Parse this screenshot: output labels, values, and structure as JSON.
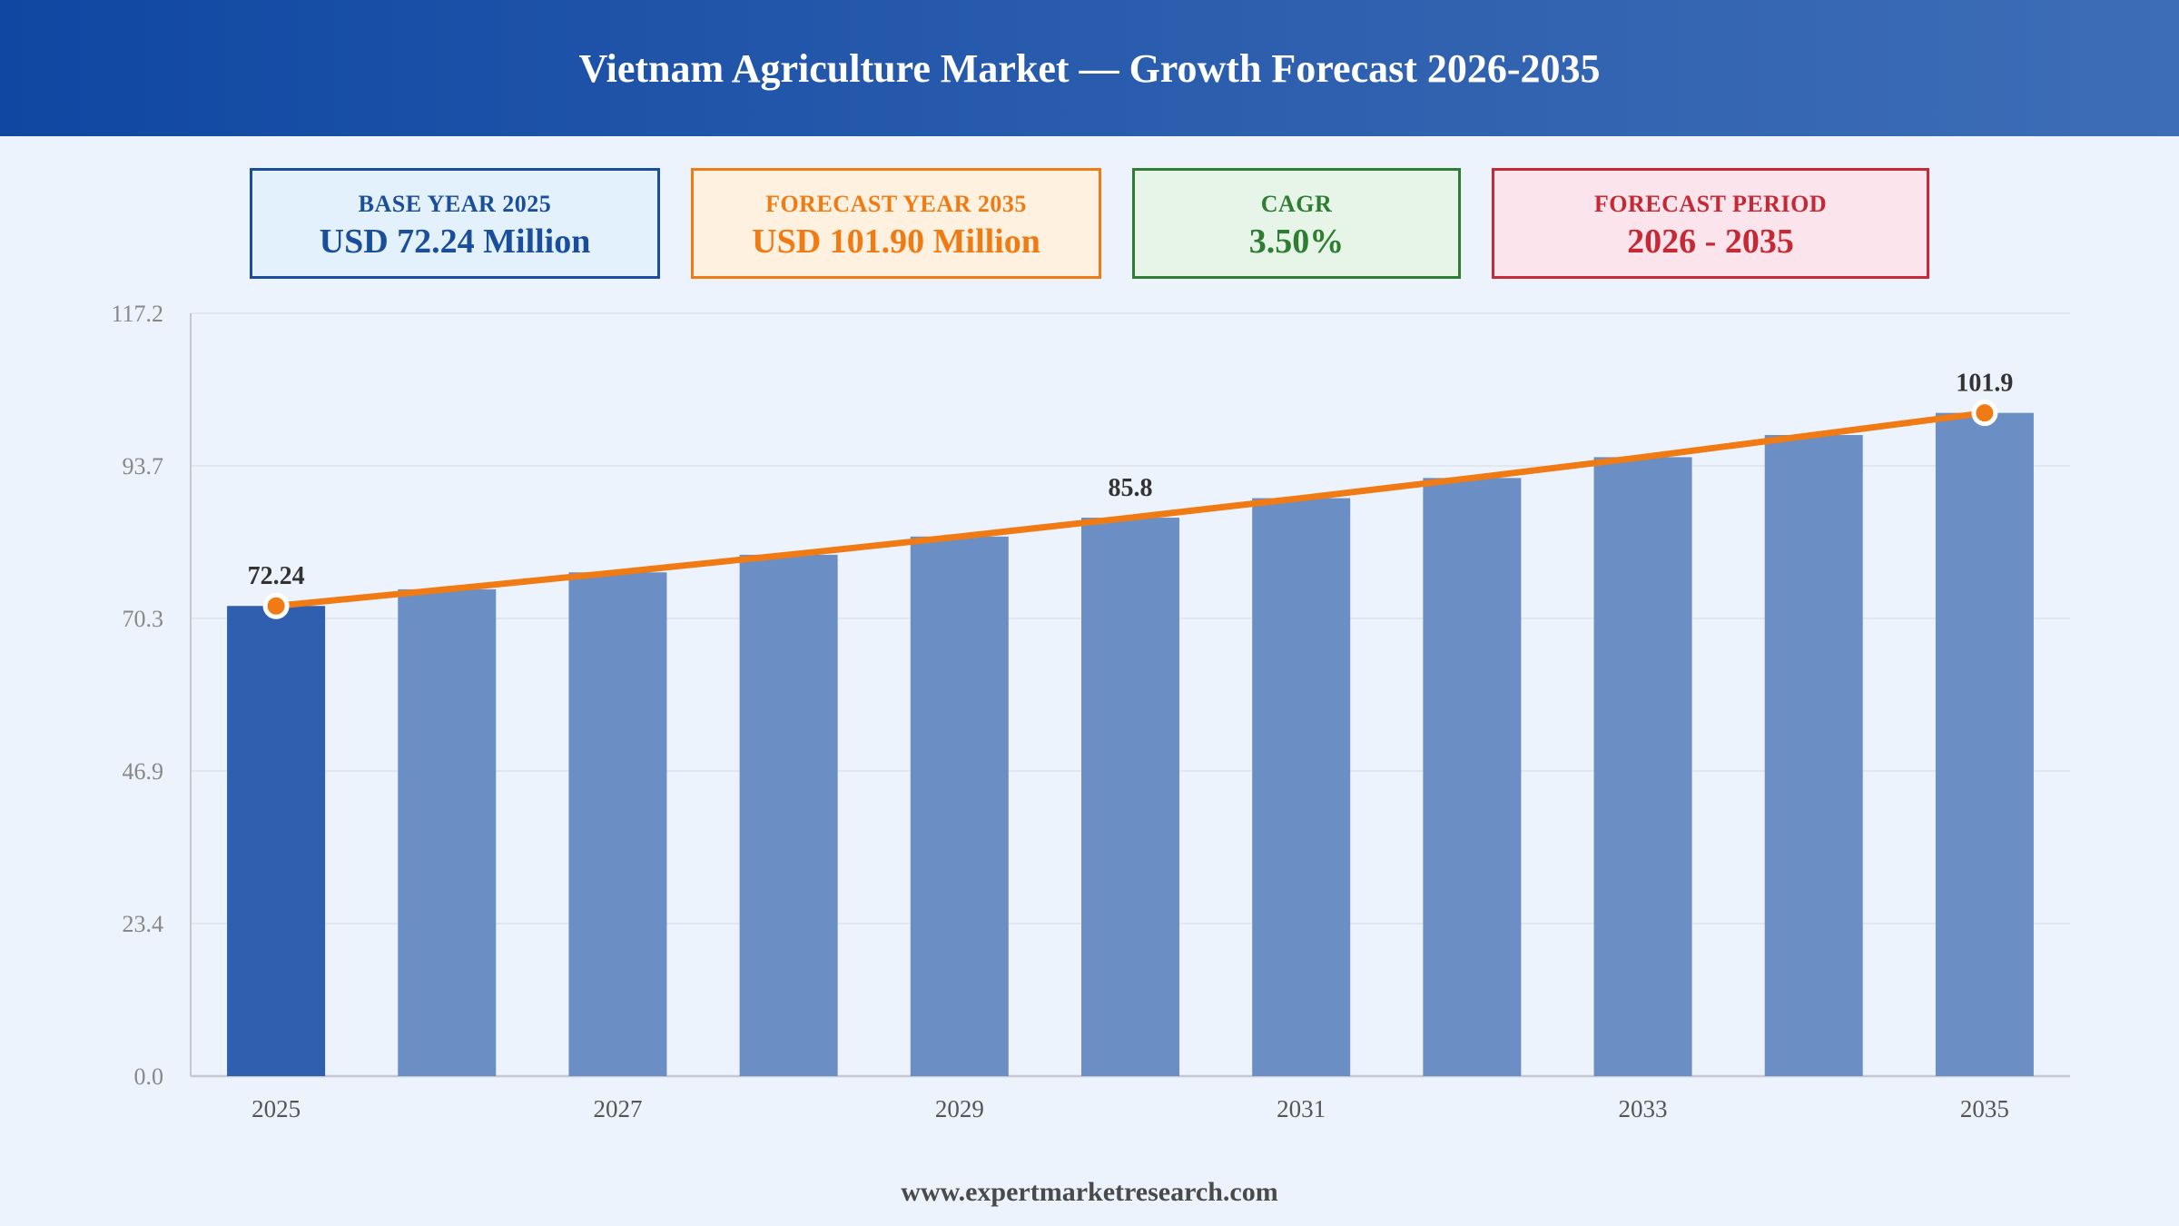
{
  "header": {
    "title": "Vietnam Agriculture Market — Growth Forecast 2026-2035"
  },
  "kpis": [
    {
      "label": "BASE YEAR 2025",
      "value": "USD 72.24 Million",
      "color": "#1a4e9c",
      "bg": "#e3f1fd"
    },
    {
      "label": "FORECAST YEAR 2035",
      "value": "USD 101.90 Million",
      "color": "#f07b14",
      "bg": "#fff1e0"
    },
    {
      "label": "CAGR",
      "value": "3.50%",
      "color": "#2f7d32",
      "bg": "#e6f5e8"
    },
    {
      "label": "FORECAST PERIOD",
      "value": "2026 - 2035",
      "color": "#c62834",
      "bg": "#fce4ec"
    }
  ],
  "chart_data": {
    "type": "bar",
    "categories": [
      "2025",
      "2026",
      "2027",
      "2028",
      "2029",
      "2030",
      "2031",
      "2032",
      "2033",
      "2034",
      "2035"
    ],
    "values": [
      72.24,
      74.8,
      77.4,
      80.1,
      82.9,
      85.8,
      88.8,
      91.9,
      95.1,
      98.5,
      101.9
    ],
    "x_tick_labels": [
      "2025",
      "",
      "2027",
      "",
      "2029",
      "",
      "2031",
      "",
      "2033",
      "",
      "2035"
    ],
    "y_ticks": [
      "0.0",
      "23.4",
      "46.9",
      "70.3",
      "93.7",
      "117.2"
    ],
    "ylim": [
      0,
      117.2
    ],
    "data_labels": [
      {
        "index": 0,
        "text": "72.24"
      },
      {
        "index": 5,
        "text": "85.8"
      },
      {
        "index": 10,
        "text": "101.9"
      }
    ],
    "trend_line": true,
    "colors": {
      "base_bar": "#2f5fae",
      "forecast_bar": "#6b8fc4",
      "trend": "#f07b14",
      "grid": "#dde3ea",
      "axis": "#c5c9cf",
      "tick_text": "#888888",
      "x_tick_text": "#555555",
      "label_text": "#333333"
    },
    "grid": true
  },
  "footer": {
    "url": "www.expertmarketresearch.com"
  }
}
